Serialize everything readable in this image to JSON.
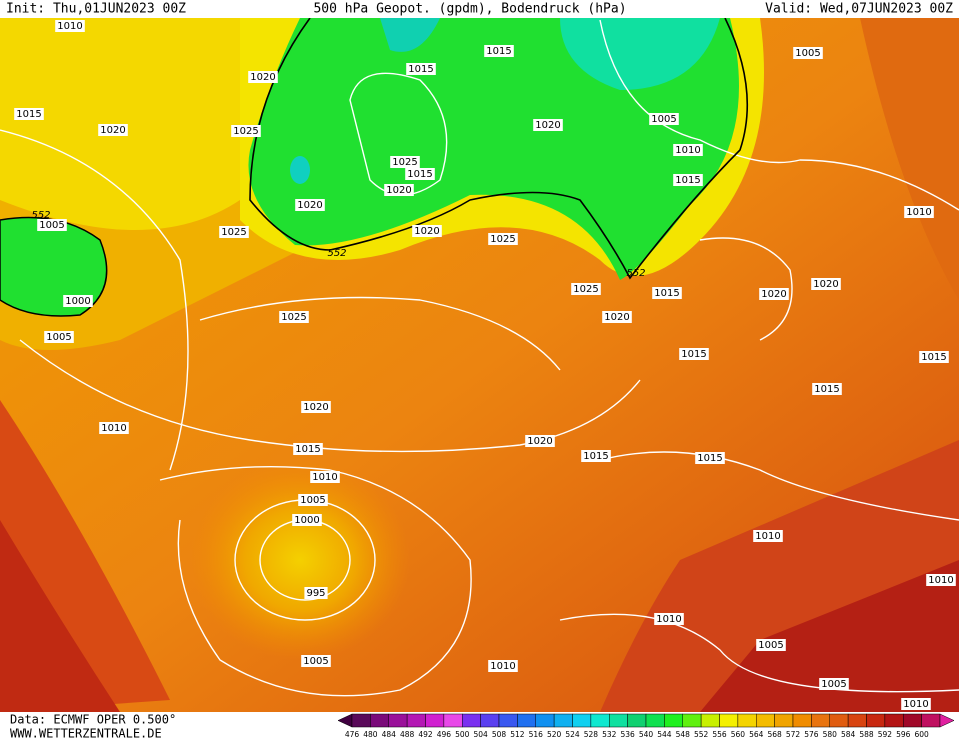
{
  "header": {
    "init": "Init: Thu,01JUN2023 00Z",
    "title": "500 hPa Geopot. (gpdm), Bodendruck (hPa)",
    "valid": "Valid: Wed,07JUN2023 00Z"
  },
  "isobar_labels": [
    "1010",
    "1020",
    "1015",
    "1015",
    "1005",
    "1015",
    "1020",
    "1025",
    "1020",
    "1005",
    "1010",
    "1025",
    "1015",
    "1020",
    "1015",
    "1020",
    "1010",
    "1005",
    "1025",
    "1020",
    "1025",
    "552",
    "552",
    "552",
    "1025",
    "1015",
    "1020",
    "1020",
    "1000",
    "1025",
    "1020",
    "1005",
    "1015",
    "1015",
    "1015",
    "1020",
    "1010",
    "1020",
    "1015",
    "1015",
    "1015",
    "1010",
    "1005",
    "1000",
    "1010",
    "995",
    "1010",
    "1010",
    "1005",
    "1010",
    "1005",
    "1005",
    "1010"
  ],
  "colorbar": {
    "labels": [
      "476",
      "480",
      "484",
      "488",
      "492",
      "496",
      "500",
      "504",
      "508",
      "512",
      "516",
      "520",
      "524",
      "528",
      "532",
      "536",
      "540",
      "544",
      "548",
      "552",
      "556",
      "560",
      "564",
      "568",
      "572",
      "576",
      "580",
      "584",
      "588",
      "592",
      "596",
      "600"
    ],
    "colors": [
      "#5a0a5a",
      "#7a0a7a",
      "#9a109a",
      "#b418b4",
      "#d020d0",
      "#e848e8",
      "#7a30f0",
      "#5a40f0",
      "#3a58f0",
      "#2070f0",
      "#1090f0",
      "#10b0f0",
      "#10d0f0",
      "#10e8d0",
      "#10e0a0",
      "#10d070",
      "#10e050",
      "#20f020",
      "#60f010",
      "#c8f000",
      "#f4f000",
      "#f4d400",
      "#f4bc00",
      "#f0a400",
      "#f08c00",
      "#e87410",
      "#e05c10",
      "#d84410",
      "#c82810",
      "#b41414",
      "#a00828",
      "#c01060"
    ]
  },
  "footer": {
    "source": "Data: ECMWF OPER 0.500°",
    "site": "WWW.WETTERZENTRALE.DE"
  }
}
